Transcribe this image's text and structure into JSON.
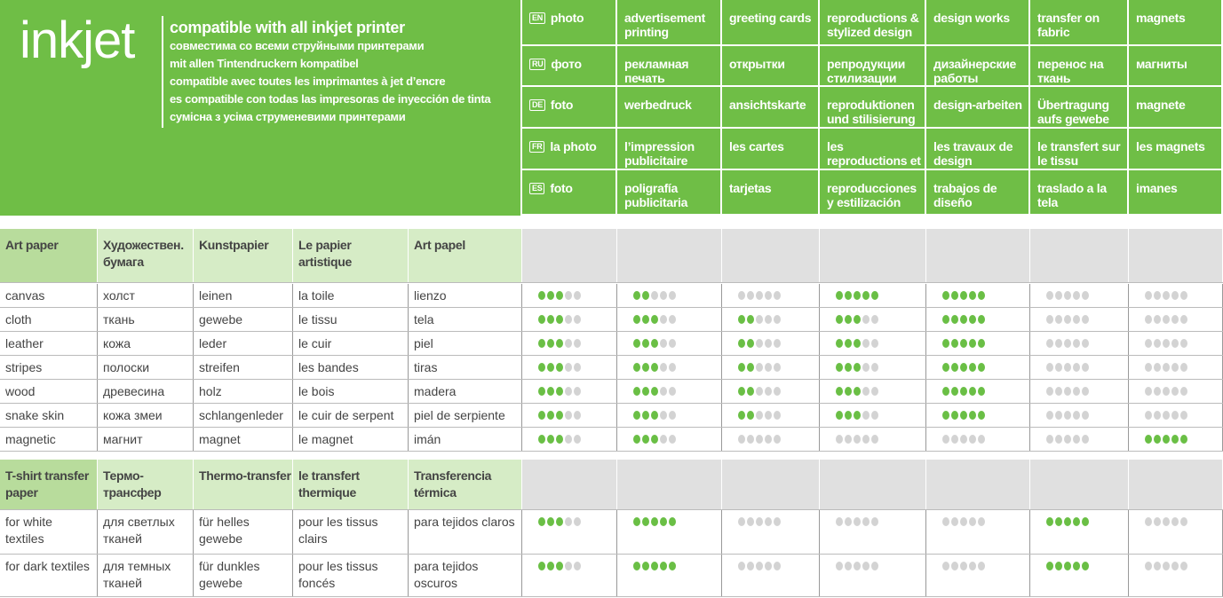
{
  "brand": {
    "logo": "inkjet",
    "taglines": [
      "compatible with all inkjet printer",
      "совместима со всеми струйными принтерами",
      "mit allen Tintendruckern kompatibel",
      "compatible avec toutes les imprimantes à jet d’encre",
      "es compatible con todas las impresoras de inyección de tinta",
      "сумісна з усіма струменевими принтерами"
    ]
  },
  "colors": {
    "green": "#6fbe46",
    "dot_on": "#6abf45",
    "dot_off": "#d3d3d3",
    "header_light": "#d6ecc6",
    "header_dark": "#b8dc9c",
    "header_gray": "#e0e0e0"
  },
  "uses": [
    {
      "lang": "EN",
      "items": [
        "photo",
        "advertisement printing",
        "greeting cards",
        "reproductions & stylized design",
        "design works",
        "transfer on fabric",
        "magnets"
      ]
    },
    {
      "lang": "RU",
      "items": [
        "фото",
        "рекламная печать",
        "открытки",
        "репродукции стилизации",
        "дизайнерские работы",
        "перенос на ткань",
        "магниты"
      ]
    },
    {
      "lang": "DE",
      "items": [
        "foto",
        "werbedruck",
        "ansichtskarte",
        "reproduktionen und stilisierung",
        "design-arbeiten",
        "Übertragung aufs gewebe",
        "magnete"
      ]
    },
    {
      "lang": "FR",
      "items": [
        "la photo",
        "l’impression publicitaire",
        "les cartes",
        "les reproductions et stylisations",
        "les travaux de design",
        "le transfert sur le tissu",
        "les magnets"
      ]
    },
    {
      "lang": "ES",
      "items": [
        "foto",
        "poligrafía publicitaria",
        "tarjetas",
        "reproducciones y estilización",
        "trabajos de diseño",
        "traslado a la tela",
        "imanes"
      ]
    }
  ],
  "sections": [
    {
      "header": [
        "Art paper",
        "Художествен. бумага",
        "Kunstpapier",
        "Le papier artistique",
        "Art papel"
      ],
      "rows": [
        {
          "names": [
            "canvas",
            "холст",
            "leinen",
            "la toile",
            "lienzo"
          ],
          "ratings": [
            3,
            2,
            0,
            5,
            5,
            0,
            0
          ]
        },
        {
          "names": [
            "cloth",
            "ткань",
            "gewebe",
            "le tissu",
            "tela"
          ],
          "ratings": [
            3,
            3,
            2,
            3,
            5,
            0,
            0
          ]
        },
        {
          "names": [
            "leather",
            "кожа",
            "leder",
            "le cuir",
            "piel"
          ],
          "ratings": [
            3,
            3,
            2,
            3,
            5,
            0,
            0
          ]
        },
        {
          "names": [
            "stripes",
            "полоски",
            "streifen",
            "les bandes",
            "tiras"
          ],
          "ratings": [
            3,
            3,
            2,
            3,
            5,
            0,
            0
          ]
        },
        {
          "names": [
            "wood",
            "древесина",
            "holz",
            "le bois",
            "madera"
          ],
          "ratings": [
            3,
            3,
            2,
            3,
            5,
            0,
            0
          ]
        },
        {
          "names": [
            "snake skin",
            "кожа змеи",
            "schlangenleder",
            "le cuir de serpent",
            "piel de serpiente"
          ],
          "ratings": [
            3,
            3,
            2,
            3,
            5,
            0,
            0
          ]
        },
        {
          "names": [
            "magnetic",
            "магнит",
            "magnet",
            "le magnet",
            "imán"
          ],
          "ratings": [
            3,
            3,
            0,
            0,
            0,
            0,
            5
          ]
        }
      ]
    },
    {
      "header": [
        "T-shirt transfer paper",
        "Термо-трансфер",
        "Thermo-transfer",
        "le transfert thermique",
        "Transferencia térmica"
      ],
      "rows": [
        {
          "names": [
            "for white textiles",
            "для светлых тканей",
            "für helles gewebe",
            "pour les tissus clairs",
            "para tejidos claros"
          ],
          "ratings": [
            3,
            5,
            0,
            0,
            0,
            5,
            0
          ]
        },
        {
          "names": [
            "for dark textiles",
            "для темных тканей",
            "für dunkles gewebe",
            "pour les tissus foncés",
            "para tejidos oscuros"
          ],
          "ratings": [
            3,
            5,
            0,
            0,
            0,
            5,
            0
          ]
        }
      ]
    }
  ]
}
